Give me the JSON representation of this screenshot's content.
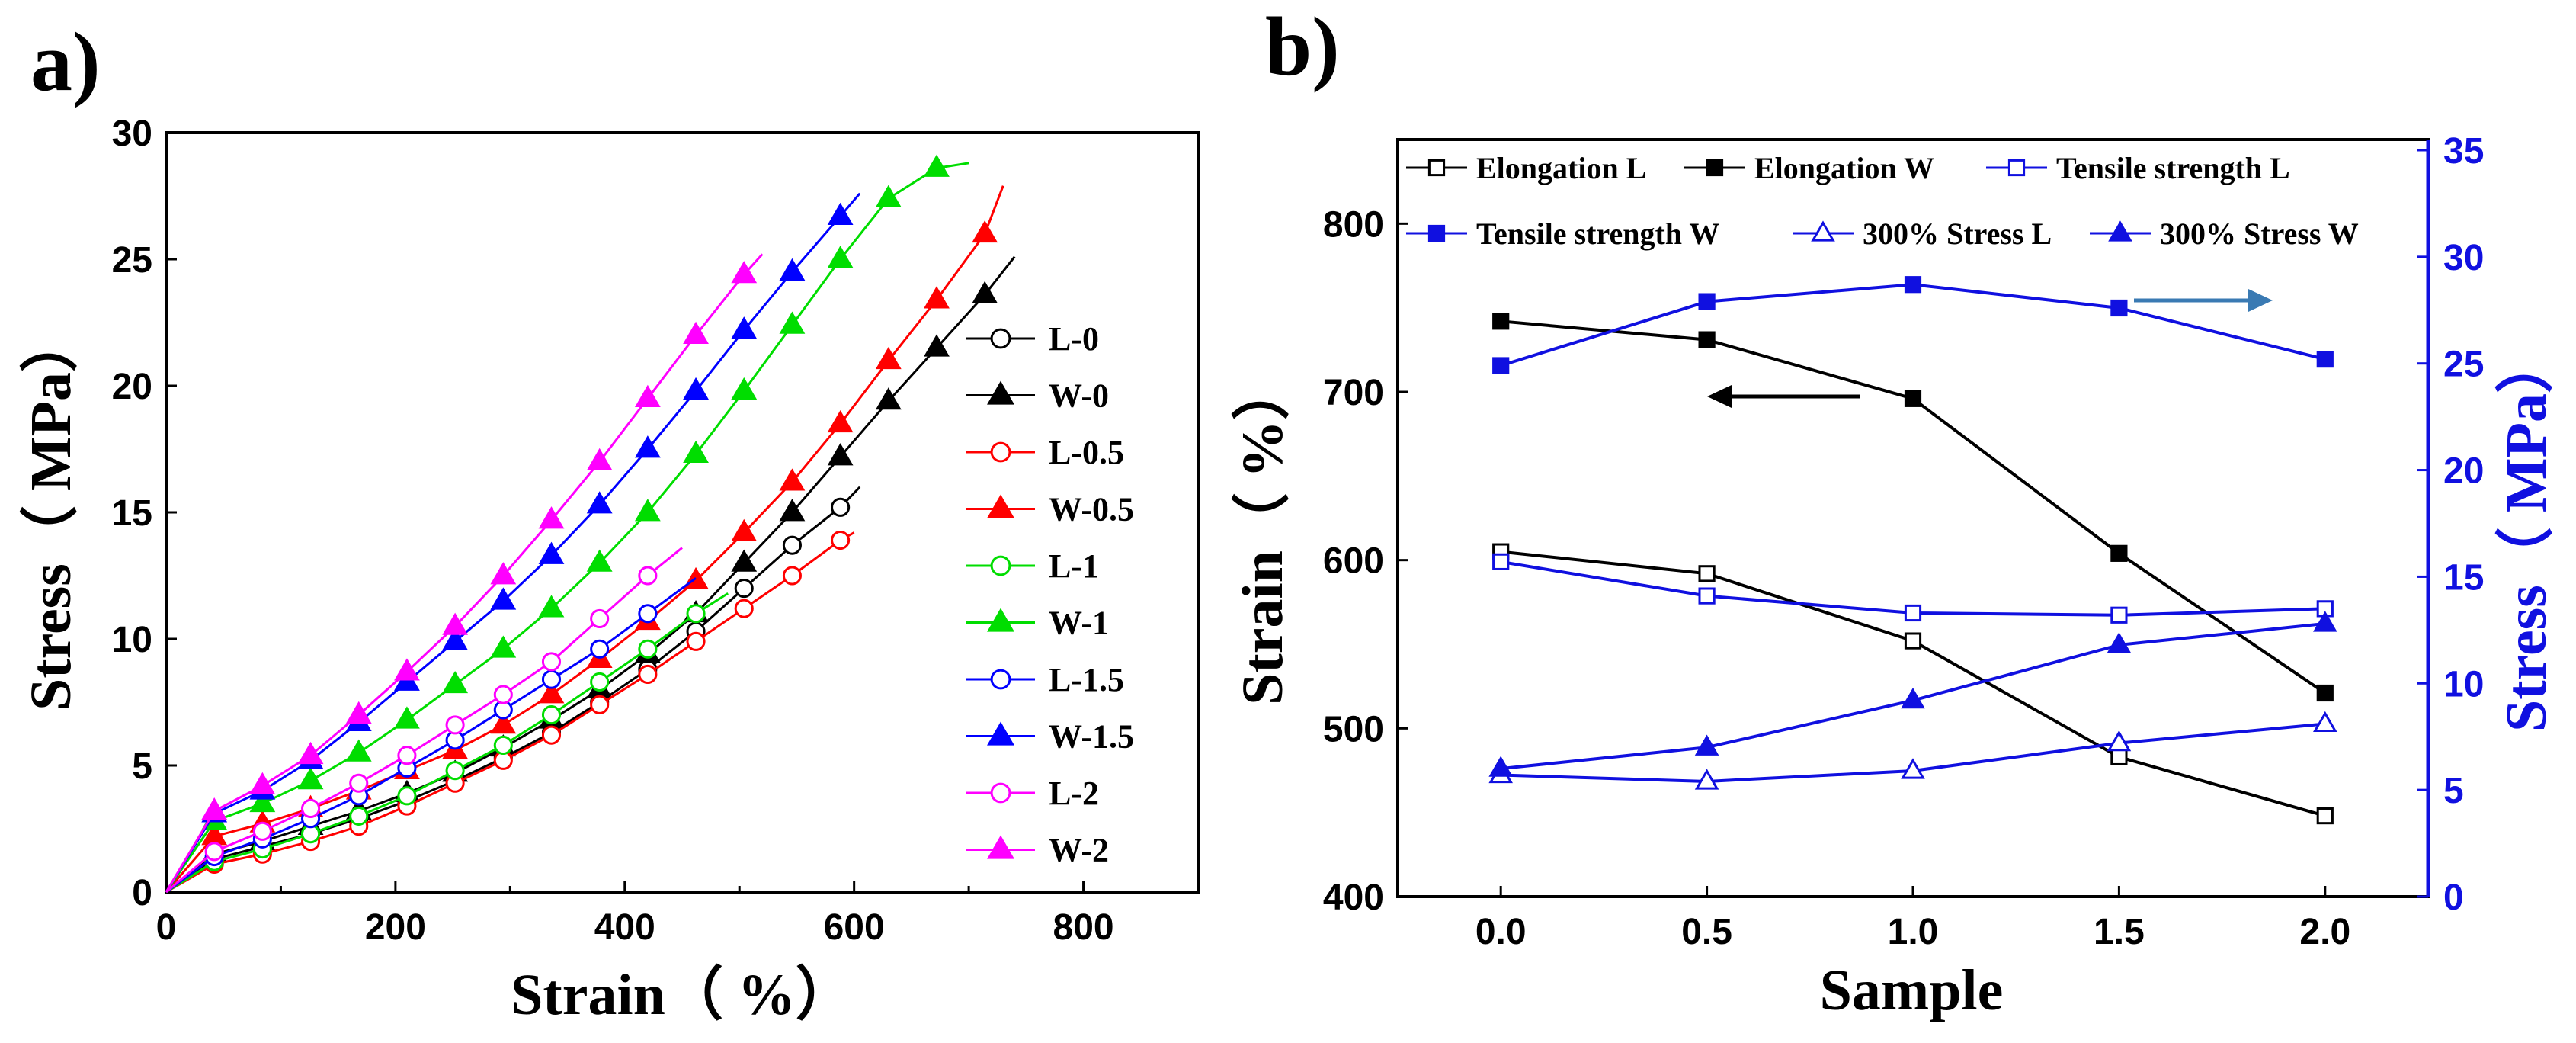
{
  "chart_data": [
    {
      "panel_label": "a)",
      "type": "line",
      "title": "",
      "xlabel": "Strain（ %）",
      "ylabel": "Stress（ MPa）",
      "xlim": [
        0,
        900
      ],
      "ylim": [
        0,
        30
      ],
      "xticks": [
        "0",
        "200",
        "400",
        "600",
        "800"
      ],
      "yticks": [
        "0",
        "5",
        "10",
        "15",
        "20",
        "25",
        "30"
      ],
      "legend_position": "right",
      "series": [
        {
          "name": "L-0",
          "color": "#000000",
          "marker": "open-circle",
          "x": [
            0,
            42,
            84,
            126,
            168,
            210,
            252,
            294,
            336,
            378,
            420,
            462,
            504,
            546,
            588,
            605
          ],
          "y": [
            0,
            1.3,
            1.8,
            2.3,
            2.9,
            3.6,
            4.4,
            5.3,
            6.3,
            7.5,
            8.8,
            10.3,
            12.0,
            13.7,
            15.2,
            16.0
          ]
        },
        {
          "name": "W-0",
          "color": "#000000",
          "marker": "filled-triangle",
          "x": [
            0,
            42,
            84,
            126,
            168,
            210,
            252,
            294,
            336,
            378,
            420,
            462,
            504,
            546,
            588,
            630,
            672,
            714,
            740
          ],
          "y": [
            0,
            1.5,
            2.0,
            2.6,
            3.2,
            3.9,
            4.7,
            5.7,
            6.8,
            8.0,
            9.4,
            11.0,
            13.0,
            15.0,
            17.2,
            19.4,
            21.5,
            23.6,
            25.1
          ]
        },
        {
          "name": "L-0.5",
          "color": "#ff0000",
          "marker": "open-circle",
          "x": [
            0,
            42,
            84,
            126,
            168,
            210,
            252,
            294,
            336,
            378,
            420,
            462,
            504,
            546,
            588,
            600
          ],
          "y": [
            0,
            1.1,
            1.5,
            2.0,
            2.6,
            3.4,
            4.3,
            5.2,
            6.2,
            7.4,
            8.6,
            9.9,
            11.2,
            12.5,
            13.9,
            14.2
          ]
        },
        {
          "name": "W-0.5",
          "color": "#ff0000",
          "marker": "filled-triangle",
          "x": [
            0,
            42,
            84,
            126,
            168,
            210,
            252,
            294,
            336,
            378,
            420,
            462,
            504,
            546,
            588,
            630,
            672,
            714,
            730
          ],
          "y": [
            0,
            2.2,
            2.7,
            3.3,
            4.0,
            4.8,
            5.6,
            6.6,
            7.8,
            9.2,
            10.7,
            12.3,
            14.2,
            16.2,
            18.5,
            21.0,
            23.4,
            26.0,
            27.9
          ]
        },
        {
          "name": "L-1",
          "color": "#00dd00",
          "marker": "open-circle",
          "x": [
            0,
            42,
            84,
            126,
            168,
            210,
            252,
            294,
            336,
            378,
            420,
            462,
            490
          ],
          "y": [
            0,
            1.2,
            1.7,
            2.3,
            3.0,
            3.8,
            4.8,
            5.8,
            7.0,
            8.3,
            9.6,
            11.0,
            11.8
          ]
        },
        {
          "name": "W-1",
          "color": "#00dd00",
          "marker": "filled-triangle",
          "x": [
            0,
            42,
            84,
            126,
            168,
            210,
            252,
            294,
            336,
            378,
            420,
            462,
            504,
            546,
            588,
            630,
            672,
            700
          ],
          "y": [
            0,
            2.8,
            3.5,
            4.4,
            5.5,
            6.8,
            8.2,
            9.6,
            11.2,
            13.0,
            15.0,
            17.3,
            19.8,
            22.4,
            25.0,
            27.4,
            28.6,
            28.8
          ]
        },
        {
          "name": "L-1.5",
          "color": "#0000ff",
          "marker": "open-circle",
          "x": [
            0,
            42,
            84,
            126,
            168,
            210,
            252,
            294,
            336,
            378,
            420,
            462
          ],
          "y": [
            0,
            1.4,
            2.1,
            2.9,
            3.8,
            4.9,
            6.0,
            7.2,
            8.4,
            9.6,
            11.0,
            12.4
          ]
        },
        {
          "name": "W-1.5",
          "color": "#0000ff",
          "marker": "filled-triangle",
          "x": [
            0,
            42,
            84,
            126,
            168,
            210,
            252,
            294,
            336,
            378,
            420,
            462,
            504,
            546,
            588,
            605
          ],
          "y": [
            0,
            3.1,
            4.0,
            5.2,
            6.7,
            8.3,
            9.9,
            11.5,
            13.3,
            15.3,
            17.5,
            19.8,
            22.2,
            24.5,
            26.7,
            27.6
          ]
        },
        {
          "name": "L-2",
          "color": "#ff00ff",
          "marker": "open-circle",
          "x": [
            0,
            42,
            84,
            126,
            168,
            210,
            252,
            294,
            336,
            378,
            420,
            450
          ],
          "y": [
            0,
            1.6,
            2.4,
            3.3,
            4.3,
            5.4,
            6.6,
            7.8,
            9.1,
            10.8,
            12.5,
            13.6
          ]
        },
        {
          "name": "W-2",
          "color": "#ff00ff",
          "marker": "filled-triangle",
          "x": [
            0,
            42,
            84,
            126,
            168,
            210,
            252,
            294,
            336,
            378,
            420,
            462,
            504,
            520
          ],
          "y": [
            0,
            3.2,
            4.2,
            5.4,
            7.0,
            8.7,
            10.5,
            12.5,
            14.7,
            17.0,
            19.5,
            22.0,
            24.4,
            25.2
          ]
        }
      ]
    },
    {
      "panel_label": "b)",
      "type": "line",
      "title": "",
      "xlabel": "Sample",
      "ylabel_left": "Strain（ %）",
      "ylabel_right": "Stress（ MPa）",
      "xlim": [
        -0.25,
        2.25
      ],
      "ylim_left": [
        400,
        850
      ],
      "ylim_right": [
        0,
        35.5
      ],
      "xticks": [
        "0.0",
        "0.5",
        "1.0",
        "1.5",
        "2.0"
      ],
      "yticks_left": [
        "400",
        "500",
        "600",
        "700",
        "800"
      ],
      "yticks_right": [
        "0",
        "5",
        "10",
        "15",
        "20",
        "25",
        "30",
        "35"
      ],
      "legend_position": "top",
      "annotations": [
        "arrow pointing left toward Strain axis",
        "arrow pointing right toward Stress axis"
      ],
      "x": [
        0.0,
        0.5,
        1.0,
        1.5,
        2.0
      ],
      "series": [
        {
          "name": "Elongation L",
          "axis": "left",
          "color": "#000000",
          "marker": "open-square",
          "values": [
            605,
            592,
            552,
            483,
            448
          ]
        },
        {
          "name": "Elongation W",
          "axis": "left",
          "color": "#000000",
          "marker": "filled-square",
          "values": [
            742,
            731,
            696,
            604,
            521
          ]
        },
        {
          "name": "Tensile strength L",
          "axis": "right",
          "color": "#1010e0",
          "marker": "open-square",
          "values": [
            15.7,
            14.1,
            13.3,
            13.2,
            13.5
          ]
        },
        {
          "name": "Tensile strength W",
          "axis": "right",
          "color": "#1010e0",
          "marker": "filled-square",
          "values": [
            24.9,
            27.9,
            28.7,
            27.6,
            25.2
          ]
        },
        {
          "name": "300% Stress L",
          "axis": "right",
          "color": "#1010e0",
          "marker": "open-triangle",
          "values": [
            5.7,
            5.4,
            5.9,
            7.2,
            8.1
          ]
        },
        {
          "name": "300% Stress W",
          "axis": "right",
          "color": "#1010e0",
          "marker": "filled-triangle",
          "values": [
            6.0,
            7.0,
            9.2,
            11.8,
            12.8
          ]
        }
      ]
    }
  ]
}
